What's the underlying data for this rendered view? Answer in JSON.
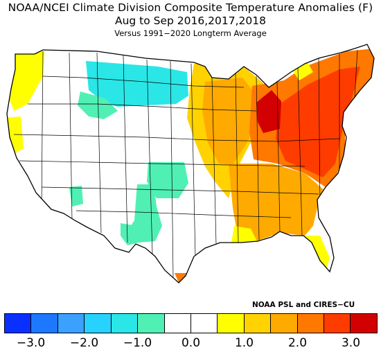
{
  "titles": {
    "line1": "NOAA/NCEI Climate Division Composite Temperature Anomalies (F)",
    "line2": "Aug to Sep  2016,2017,2018",
    "line3": "Versus 1991−2020 Longterm Average"
  },
  "credit": "NOAA PSL and CIRES−CU",
  "colorbar": {
    "colors": [
      "#0a30ff",
      "#1e78ff",
      "#3ca0ff",
      "#28d2ff",
      "#2ae6e6",
      "#50f0b4",
      "#ffffff",
      "#ffffff",
      "#ffff00",
      "#ffd200",
      "#ffaa00",
      "#ff7800",
      "#ff3c00",
      "#d20000"
    ],
    "ticks": [
      "−3.0",
      "−2.0",
      "−1.0",
      "0.0",
      "1.0",
      "2.0",
      "3.0"
    ]
  },
  "map": {
    "colors": {
      "cyan": "#2ae6e6",
      "green": "#50f0b4",
      "yellow": "#ffff00",
      "gold": "#ffd200",
      "orange": "#ffaa00",
      "dark_orange": "#ff7800",
      "red_orange": "#ff3c00",
      "red": "#d20000"
    }
  }
}
